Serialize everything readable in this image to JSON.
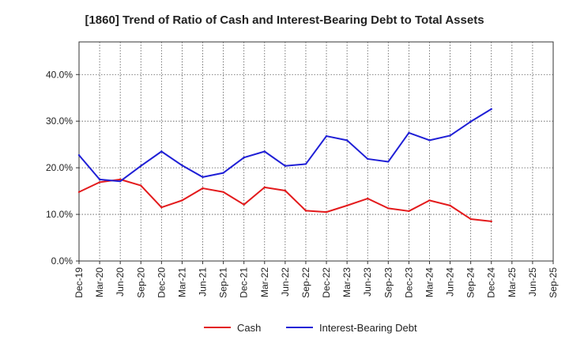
{
  "chart_data": {
    "type": "line",
    "title": "[1860]  Trend of Ratio of Cash and Interest-Bearing Debt to Total Assets",
    "xlabel": "",
    "ylabel": "",
    "x_tick_labels": [
      "Dec-19",
      "Mar-20",
      "Jun-20",
      "Sep-20",
      "Dec-20",
      "Mar-21",
      "Jun-21",
      "Sep-21",
      "Dec-21",
      "Mar-22",
      "Jun-22",
      "Sep-22",
      "Dec-22",
      "Mar-23",
      "Jun-23",
      "Sep-23",
      "Dec-23",
      "Mar-24",
      "Jun-24",
      "Sep-24",
      "Dec-24",
      "Mar-25",
      "Jun-25",
      "Sep-25"
    ],
    "x": [
      "Dec-19",
      "Mar-20",
      "Jun-20",
      "Sep-20",
      "Dec-20",
      "Mar-21",
      "Jun-21",
      "Sep-21",
      "Dec-21",
      "Mar-22",
      "Jun-22",
      "Sep-22",
      "Dec-22",
      "Mar-23",
      "Jun-23",
      "Sep-23",
      "Dec-23",
      "Mar-24",
      "Jun-24",
      "Sep-24",
      "Dec-24"
    ],
    "y_ticks": [
      "0.0%",
      "10.0%",
      "20.0%",
      "30.0%",
      "40.0%"
    ],
    "ylim": [
      0,
      47
    ],
    "grid": true,
    "legend_position": "bottom-center",
    "series": [
      {
        "name": "Cash",
        "color": "#e31a1c",
        "values": [
          14.8,
          16.9,
          17.5,
          16.2,
          11.5,
          13.0,
          15.6,
          14.8,
          12.1,
          15.8,
          15.1,
          10.8,
          10.5,
          11.9,
          13.4,
          11.3,
          10.7,
          13.0,
          11.9,
          9.0,
          8.5
        ]
      },
      {
        "name": "Interest-Bearing Debt",
        "color": "#1f1fd6",
        "values": [
          22.7,
          17.5,
          17.1,
          20.4,
          23.5,
          20.5,
          18.0,
          18.9,
          22.2,
          23.5,
          20.4,
          20.8,
          26.8,
          25.9,
          21.9,
          21.3,
          27.5,
          25.9,
          26.9,
          29.9,
          32.6
        ]
      }
    ]
  }
}
